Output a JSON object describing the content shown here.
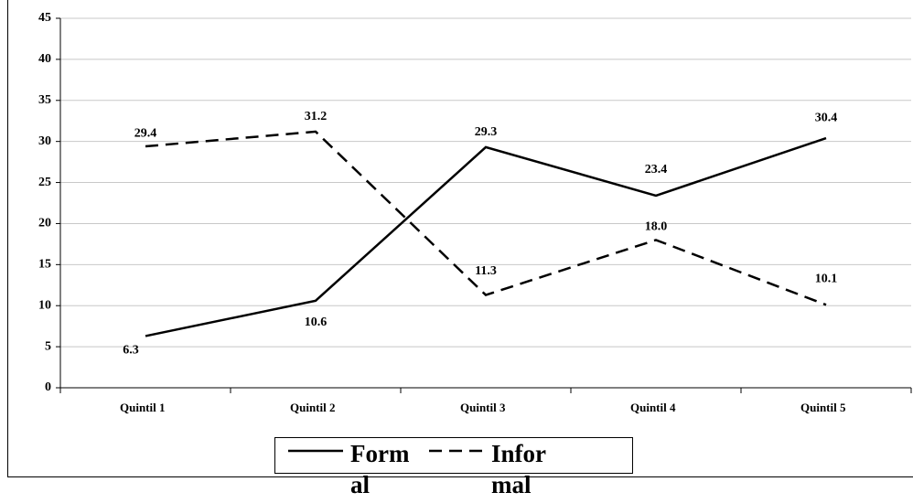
{
  "chart_data": {
    "type": "line",
    "categories": [
      "Quintil 1",
      "Quintil 2",
      "Quintil 3",
      "Quintil 4",
      "Quintil 5"
    ],
    "series": [
      {
        "name": "Formal",
        "color": "#000000",
        "dash": false,
        "values": [
          6.3,
          10.6,
          29.3,
          23.4,
          30.4
        ],
        "value_labels": [
          "6.3",
          "10.6",
          "29.3",
          "23.4",
          "30.4"
        ]
      },
      {
        "name": "Informal",
        "color": "#000000",
        "dash": true,
        "values": [
          29.4,
          31.2,
          11.3,
          18.0,
          10.1
        ],
        "value_labels": [
          "29.4",
          "31.2",
          "11.3",
          "18.0",
          "10.1"
        ]
      }
    ],
    "ylim": [
      0,
      45
    ],
    "yticks": [
      0,
      5,
      10,
      15,
      20,
      25,
      30,
      35,
      40,
      45
    ],
    "grid": true,
    "legend": "bottom"
  }
}
